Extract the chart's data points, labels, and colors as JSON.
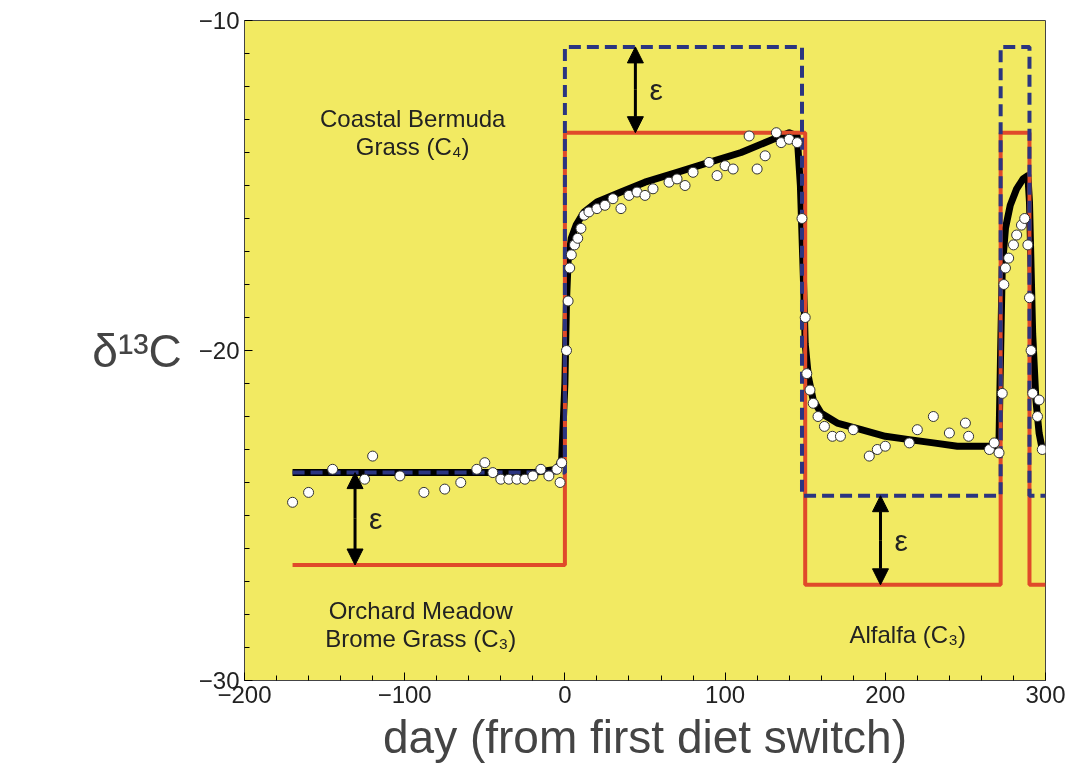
{
  "chart_data": {
    "type": "scatter",
    "xlabel": "day (from first diet switch)",
    "ylabel": "δ¹³C",
    "xlim": [
      -200,
      300
    ],
    "ylim": [
      -30,
      -10
    ],
    "xticks": [
      -200,
      {
        "value": -180,
        "label": null
      },
      {
        "value": -160,
        "label": null
      },
      {
        "value": -140,
        "label": null
      },
      {
        "value": -120,
        "label": null
      },
      -100,
      {
        "value": -80,
        "label": null
      },
      {
        "value": -60,
        "label": null
      },
      {
        "value": -40,
        "label": null
      },
      {
        "value": -20,
        "label": null
      },
      0,
      {
        "value": 20,
        "label": null
      },
      {
        "value": 40,
        "label": null
      },
      {
        "value": 60,
        "label": null
      },
      {
        "value": 80,
        "label": null
      },
      100,
      {
        "value": 120,
        "label": null
      },
      {
        "value": 140,
        "label": null
      },
      {
        "value": 160,
        "label": null
      },
      {
        "value": 180,
        "label": null
      },
      200,
      {
        "value": 220,
        "label": null
      },
      {
        "value": 240,
        "label": null
      },
      {
        "value": 260,
        "label": null
      },
      {
        "value": 280,
        "label": null
      },
      300
    ],
    "yticks": [
      -30,
      {
        "value": -29,
        "label": null
      },
      {
        "value": -28,
        "label": null
      },
      {
        "value": -27,
        "label": null
      },
      {
        "value": -26,
        "label": null
      },
      {
        "value": -25,
        "label": null
      },
      {
        "value": -24,
        "label": null
      },
      {
        "value": -23,
        "label": null
      },
      {
        "value": -22,
        "label": null
      },
      {
        "value": -21,
        "label": null
      },
      -20,
      {
        "value": -19,
        "label": null
      },
      {
        "value": -18,
        "label": null
      },
      {
        "value": -17,
        "label": null
      },
      {
        "value": -16,
        "label": null
      },
      {
        "value": -15,
        "label": null
      },
      {
        "value": -14,
        "label": null
      },
      {
        "value": -13,
        "label": null
      },
      {
        "value": -12,
        "label": null
      },
      {
        "value": -11,
        "label": null
      },
      -10
    ],
    "grid": false,
    "series": [
      {
        "type": "step",
        "color": "#e04a2a",
        "line_style": "solid",
        "x": [
          -170,
          0,
          150,
          272,
          290,
          300
        ],
        "values": [
          -26.5,
          -13.4,
          -27.1,
          -13.4,
          -27.1,
          -27.1
        ]
      },
      {
        "type": "step",
        "color": "#2b3580",
        "line_style": "dashed",
        "x": [
          -170,
          0,
          148,
          272,
          290,
          300
        ],
        "values": [
          -23.7,
          -10.8,
          -24.4,
          -10.8,
          -24.4,
          -24.4
        ]
      },
      {
        "type": "line",
        "color": "#000000",
        "line_style": "solid",
        "x": [
          -170,
          -100,
          -20,
          -5,
          -2,
          0,
          1,
          2,
          4,
          7,
          12,
          20,
          35,
          50,
          70,
          90,
          110,
          130,
          140,
          145,
          147,
          149,
          150,
          152,
          155,
          160,
          170,
          185,
          200,
          215,
          230,
          245,
          260,
          268,
          271,
          272,
          273,
          275,
          278,
          282,
          286,
          289,
          290,
          291,
          292,
          294,
          296,
          298
        ],
        "values": [
          -23.7,
          -23.7,
          -23.7,
          -23.6,
          -23.3,
          -21,
          -18.5,
          -17.3,
          -16.6,
          -16.2,
          -15.8,
          -15.5,
          -15.2,
          -14.9,
          -14.6,
          -14.3,
          -14.0,
          -13.6,
          -13.4,
          -13.5,
          -15,
          -18,
          -19.8,
          -20.8,
          -21.5,
          -21.9,
          -22.2,
          -22.4,
          -22.6,
          -22.7,
          -22.8,
          -22.9,
          -22.9,
          -22.9,
          -22.7,
          -20,
          -17.5,
          -16.3,
          -15.6,
          -15.1,
          -14.8,
          -14.7,
          -15.5,
          -17.5,
          -19.5,
          -21.5,
          -22.5,
          -23
        ]
      },
      {
        "color": "#ffffff",
        "marker": "circle",
        "x": [
          -170,
          -160,
          -145,
          -120,
          -125,
          -103,
          -88,
          -75,
          -65,
          -55,
          -50,
          -45,
          -40,
          -35,
          -30,
          -25,
          -20,
          -15,
          -10,
          -5,
          -3,
          -2,
          1,
          2,
          3,
          4,
          6,
          8,
          10,
          12,
          15,
          20,
          25,
          30,
          35,
          40,
          45,
          50,
          55,
          65,
          70,
          75,
          80,
          90,
          95,
          100,
          105,
          115,
          120,
          125,
          132,
          135,
          140,
          145,
          148,
          150,
          151,
          153,
          155,
          158,
          162,
          167,
          172,
          180,
          190,
          195,
          200,
          215,
          220,
          230,
          240,
          250,
          252,
          265,
          268,
          271,
          273,
          274,
          275,
          277,
          280,
          282,
          285,
          287,
          289,
          290,
          291,
          292,
          295,
          296,
          298
        ],
        "values": [
          -24.6,
          -24.3,
          -23.6,
          -23.2,
          -23.9,
          -23.8,
          -24.3,
          -24.2,
          -24.0,
          -23.6,
          -23.4,
          -23.7,
          -23.9,
          -23.9,
          -23.9,
          -23.9,
          -23.8,
          -23.6,
          -23.8,
          -23.6,
          -24.0,
          -23.4,
          -20,
          -18.5,
          -17.5,
          -17.1,
          -16.8,
          -16.6,
          -16.3,
          -15.9,
          -15.8,
          -15.7,
          -15.6,
          -15.4,
          -15.7,
          -15.3,
          -15.2,
          -15.3,
          -15.1,
          -14.9,
          -14.8,
          -15.0,
          -14.6,
          -14.3,
          -14.7,
          -14.4,
          -14.5,
          -13.5,
          -14.5,
          -14.1,
          -13.4,
          -13.7,
          -13.6,
          -13.7,
          -16,
          -19.0,
          -20.7,
          -21.2,
          -21.6,
          -22.0,
          -22.3,
          -22.6,
          -22.6,
          -22.4,
          -23.2,
          -23.0,
          -22.9,
          -22.8,
          -22.4,
          -22.0,
          -22.5,
          -22.2,
          -22.6,
          -23.0,
          -22.8,
          -23.1,
          -21.3,
          -18.0,
          -17.5,
          -17.2,
          -16.8,
          -16.5,
          -16.2,
          -16.0,
          -16.8,
          -18.4,
          -20.0,
          -21.3,
          -22.0,
          -21.5,
          -23.0
        ]
      }
    ],
    "annotations": [
      "Coastal Bermuda\nGrass (C₄)",
      "Orchard Meadow\nBrome Grass (C₃)",
      "Alfalfa (C₃)",
      "ε",
      "ε",
      "ε"
    ]
  }
}
